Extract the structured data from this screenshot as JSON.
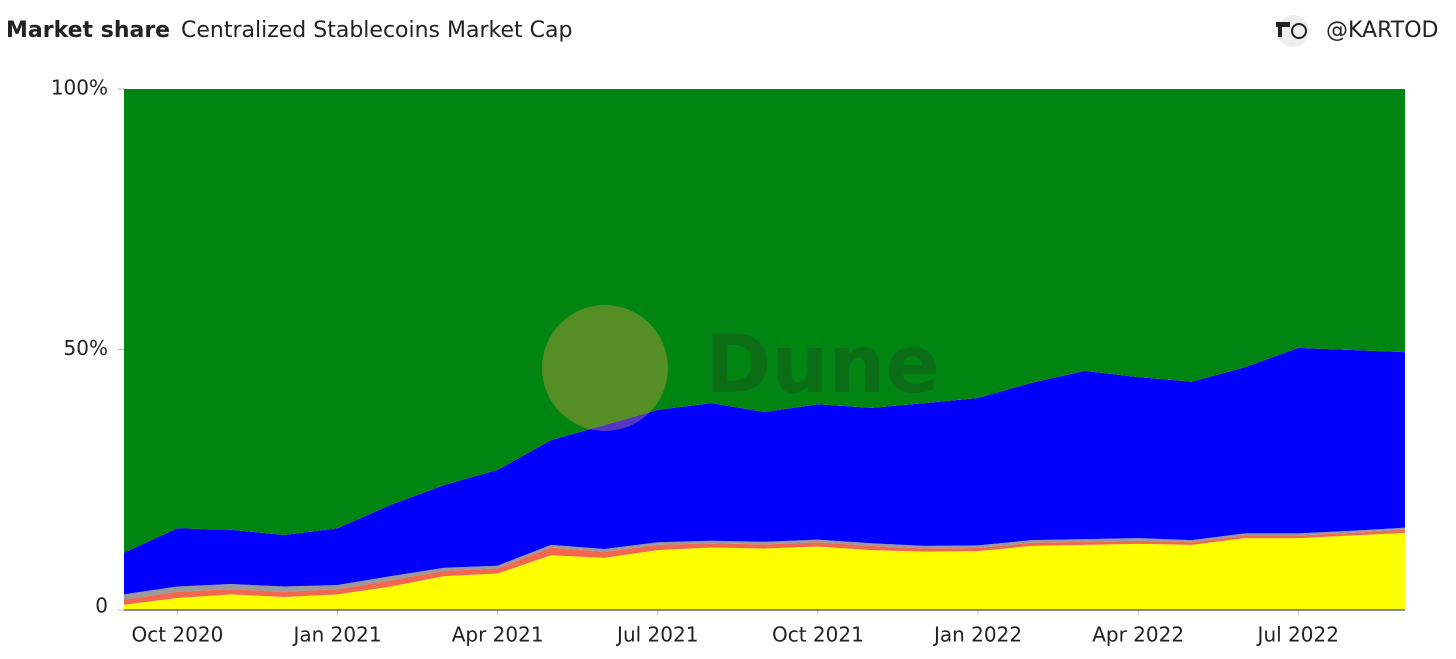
{
  "header": {
    "title": "Market share",
    "subtitle": "Centralized Stablecoins Market Cap",
    "author": "@KARTOD"
  },
  "watermark": "Dune",
  "chart_data": {
    "type": "stacked_area",
    "x": [
      "2020-09",
      "2020-10",
      "2020-11",
      "2020-12",
      "2021-01",
      "2021-02",
      "2021-03",
      "2021-04",
      "2021-05",
      "2021-06",
      "2021-07",
      "2021-08",
      "2021-09",
      "2021-10",
      "2021-11",
      "2021-12",
      "2022-01",
      "2022-02",
      "2022-03",
      "2022-04",
      "2022-05",
      "2022-06",
      "2022-07",
      "2022-08",
      "2022-09"
    ],
    "series": [
      {
        "color": "#ffff00",
        "values": [
          1,
          2.3,
          3,
          2.5,
          3,
          4.5,
          6.5,
          7,
          10.5,
          10,
          11.5,
          12,
          11.8,
          12.2,
          11.5,
          11.2,
          11.3,
          12.3,
          12.5,
          12.7,
          12.5,
          13.8,
          13.8,
          14.3,
          14.8
        ]
      },
      {
        "color": "#f2674d",
        "values": [
          1,
          1.2,
          1,
          1,
          1,
          1.2,
          1,
          1,
          1.5,
          1.2,
          1,
          0.8,
          0.8,
          0.8,
          0.8,
          0.6,
          0.6,
          0.6,
          0.6,
          0.6,
          0.5,
          0.5,
          0.5,
          0.5,
          0.6
        ]
      },
      {
        "color": "#9a9a9a",
        "values": [
          1,
          1,
          1,
          1,
          0.8,
          0.8,
          0.6,
          0.5,
          0.5,
          0.5,
          0.5,
          0.5,
          0.5,
          0.5,
          0.5,
          0.5,
          0.5,
          0.5,
          0.5,
          0.5,
          0.4,
          0.4,
          0.4,
          0.4,
          0.4
        ]
      },
      {
        "color": "#0000ff",
        "values": [
          8,
          11.2,
          10.4,
          9.9,
          10.9,
          13.7,
          15.9,
          18.4,
          20.1,
          23.8,
          25.4,
          26.4,
          24.9,
          26,
          26,
          27.4,
          28.3,
          30.2,
          32.3,
          30.9,
          30.4,
          31.9,
          35.6,
          34.7,
          33.7
        ]
      },
      {
        "color": "#008512",
        "values": [
          89,
          84.3,
          84.6,
          85.6,
          84.3,
          79.8,
          76,
          73.1,
          67.4,
          64.5,
          61.6,
          60.3,
          62,
          60.5,
          61.2,
          60.3,
          59.3,
          56.4,
          54.1,
          55.3,
          56.2,
          53.4,
          49.7,
          50.1,
          50.5
        ]
      }
    ],
    "xlim": [
      "2020-09",
      "2022-09"
    ],
    "xticks": [
      {
        "value": "2020-10",
        "label": "Oct 2020"
      },
      {
        "value": "2021-01",
        "label": "Jan 2021"
      },
      {
        "value": "2021-04",
        "label": "Apr 2021"
      },
      {
        "value": "2021-07",
        "label": "Jul 2021"
      },
      {
        "value": "2021-10",
        "label": "Oct 2021"
      },
      {
        "value": "2022-01",
        "label": "Jan 2022"
      },
      {
        "value": "2022-04",
        "label": "Apr 2022"
      },
      {
        "value": "2022-07",
        "label": "Jul 2022"
      }
    ],
    "ylim": [
      0,
      100
    ],
    "yticks": [
      0,
      {
        "value": 50,
        "label": "50%"
      },
      {
        "value": 100,
        "label": "100%"
      }
    ]
  }
}
